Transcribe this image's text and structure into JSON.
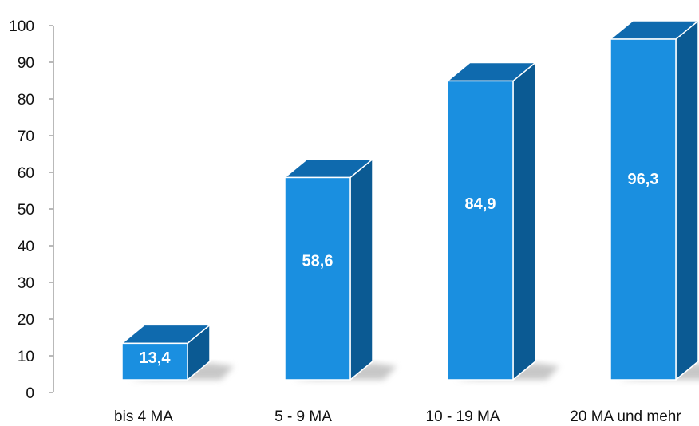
{
  "chart_data": {
    "type": "bar",
    "categories": [
      "bis 4 MA",
      "5 - 9 MA",
      "10 - 19 MA",
      "20 MA und mehr"
    ],
    "values": [
      13.4,
      58.6,
      84.9,
      96.3
    ],
    "value_labels": [
      "13,4",
      "58,6",
      "84,9",
      "96,3"
    ],
    "ylim": [
      0,
      100
    ],
    "yticks": [
      0,
      10,
      20,
      30,
      40,
      50,
      60,
      70,
      80,
      90,
      100
    ],
    "grid": false,
    "style": "3d"
  },
  "colors": {
    "bar_front": "#1a8fe0",
    "bar_top": "#0f6aae",
    "bar_side": "#0b5a93",
    "axis": "#8a8a8a"
  }
}
